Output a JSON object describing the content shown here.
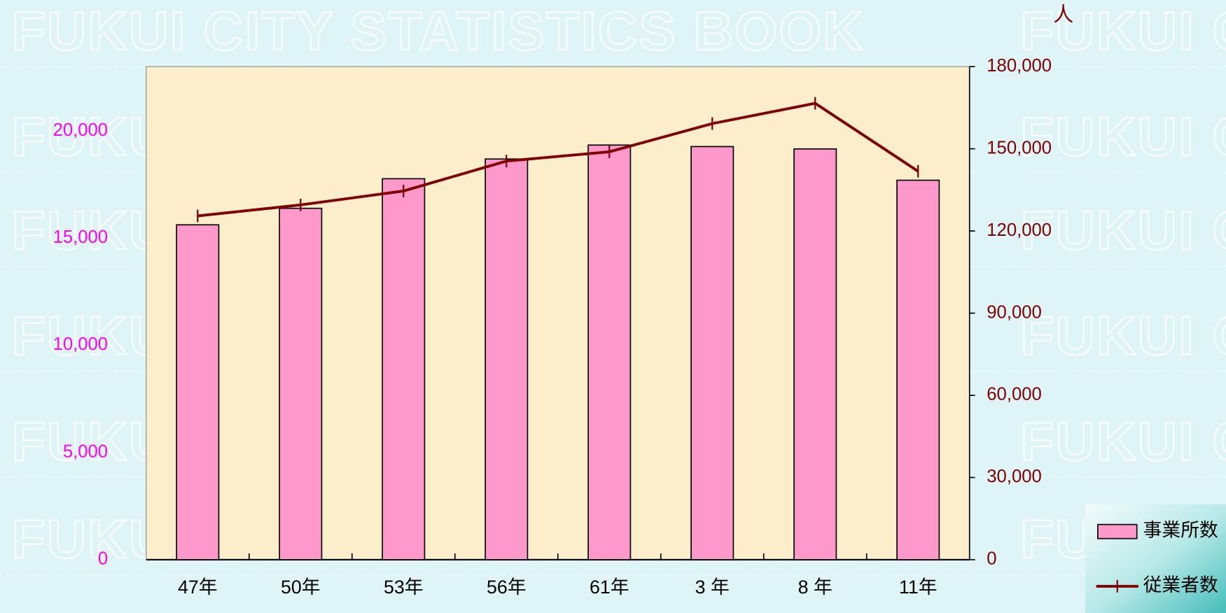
{
  "chart_data": {
    "type": "bar",
    "watermark": "FUKUI CITY STATISTICS BOOK",
    "y2_unit": "人",
    "categories": [
      "47年",
      "50年",
      "53年",
      "56年",
      "61年",
      "3 年",
      "8 年",
      "11年"
    ],
    "series": [
      {
        "name": "事業所数",
        "type": "bar",
        "color": "#ff99cc",
        "axis": "y",
        "values": [
          15620,
          16390,
          17770,
          18690,
          19340,
          19270,
          19160,
          17700
        ]
      },
      {
        "name": "従業者数",
        "type": "line",
        "color": "#800000",
        "axis": "y2",
        "values": [
          125500,
          129500,
          134600,
          145500,
          148900,
          159200,
          166600,
          141800
        ]
      }
    ],
    "ylim": [
      0,
      23000
    ],
    "yticks": [
      0,
      {
        "value": 5000,
        "label": "5,000"
      },
      {
        "value": 10000,
        "label": "10,000"
      },
      {
        "value": 15000,
        "label": "15,000"
      },
      {
        "value": 20000,
        "label": "20,000"
      }
    ],
    "y_tick_color": "#ff00ff",
    "y2lim": [
      0,
      180000
    ],
    "y2ticks": [
      0,
      {
        "value": 30000,
        "label": "30,000"
      },
      {
        "value": 60000,
        "label": "60,000"
      },
      {
        "value": 90000,
        "label": "90,000"
      },
      {
        "value": 120000,
        "label": "120,000"
      },
      {
        "value": 150000,
        "label": "150,000"
      },
      {
        "value": 180000,
        "label": "180,000"
      }
    ],
    "y2_tick_color": "#800000",
    "legend": "bottom-right",
    "grid": false
  }
}
